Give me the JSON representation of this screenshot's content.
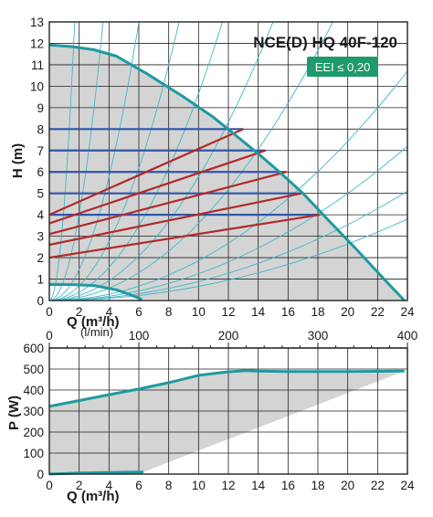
{
  "title": "NCE(D) HQ 40F-120",
  "badge": {
    "text": "EEI ≤ 0,20",
    "color": "#1f9a6b"
  },
  "colors": {
    "curve": "#1f9aa0",
    "system": "#3fb7c7",
    "fill": "#d4d4d4",
    "grid": "#222222",
    "const_pressure": "#2f56a8",
    "prop_pressure": "#b12a2a"
  },
  "chart_data": [
    {
      "type": "line",
      "name": "head",
      "ylabel": "H (m)",
      "xlabel": "Q (m³/h)",
      "xlabel_alt": "(l/min)",
      "xlim": [
        0,
        24
      ],
      "ylim": [
        0,
        13
      ],
      "x_ticks": [
        "0",
        "2",
        "4",
        "6",
        "8",
        "10",
        "12",
        "14",
        "16",
        "18",
        "20",
        "22",
        "24"
      ],
      "y_ticks": [
        "0",
        "1",
        "2",
        "3",
        "4",
        "5",
        "6",
        "7",
        "8",
        "9",
        "10",
        "11",
        "12",
        "13"
      ],
      "grid": true,
      "max_curve": {
        "x": [
          0,
          1.5,
          3,
          4.5,
          6.5,
          9,
          11,
          12.5,
          14,
          15.5,
          17,
          18.7,
          20.5,
          22.5,
          23.8
        ],
        "y": [
          11.92,
          11.85,
          11.7,
          11.4,
          10.6,
          9.5,
          8.55,
          7.7,
          6.85,
          5.95,
          5.0,
          3.75,
          2.45,
          0.95,
          0
        ]
      },
      "min_curve": {
        "x": [
          0,
          1.5,
          3,
          4.5,
          5.5,
          6.2
        ],
        "y": [
          0.75,
          0.74,
          0.7,
          0.5,
          0.25,
          0.05
        ]
      },
      "constant_pressure": [
        {
          "y": 8,
          "x_end": 13
        },
        {
          "y": 7,
          "x_end": 14.5
        },
        {
          "y": 6,
          "x_end": 15.9
        },
        {
          "y": 5,
          "x_end": 16.9
        },
        {
          "y": 4,
          "x_end": 18.1
        }
      ],
      "proportional_pressure": [
        {
          "x": [
            0,
            13
          ],
          "y": [
            4.0,
            8.0
          ]
        },
        {
          "x": [
            0,
            14.5
          ],
          "y": [
            3.6,
            7.0
          ]
        },
        {
          "x": [
            0,
            15.9
          ],
          "y": [
            3.1,
            6.0
          ]
        },
        {
          "x": [
            0,
            16.9
          ],
          "y": [
            2.6,
            5.0
          ]
        },
        {
          "x": [
            0,
            18.1
          ],
          "y": [
            2.0,
            4.0
          ]
        }
      ],
      "system_curves": [
        {
          "x": [
            0,
            1.7
          ],
          "y": [
            0,
            13
          ]
        },
        {
          "x": [
            0,
            3.6
          ],
          "y": [
            0,
            13
          ]
        },
        {
          "x": [
            0,
            6.0
          ],
          "y": [
            0,
            13
          ]
        },
        {
          "x": [
            0,
            8.7
          ],
          "y": [
            0,
            13
          ]
        },
        {
          "x": [
            0,
            11.6
          ],
          "y": [
            0,
            13
          ]
        },
        {
          "x": [
            0,
            15.0
          ],
          "y": [
            0,
            13
          ]
        },
        {
          "x": [
            0,
            19.0
          ],
          "y": [
            0,
            13
          ]
        },
        {
          "x": [
            0,
            24
          ],
          "y": [
            0,
            10.7
          ]
        },
        {
          "x": [
            0,
            24
          ],
          "y": [
            0,
            7.2
          ]
        },
        {
          "x": [
            0,
            24
          ],
          "y": [
            0,
            5.1
          ]
        },
        {
          "x": [
            0,
            24
          ],
          "y": [
            0,
            3.8
          ]
        }
      ],
      "lpm_axis": {
        "ticks": [
          "0",
          "100",
          "200",
          "300",
          "400"
        ],
        "values": [
          0,
          100,
          200,
          300,
          400
        ],
        "x_per_unit": 0.06
      }
    },
    {
      "type": "line",
      "name": "power",
      "ylabel": "P (W)",
      "xlabel": "Q (m³/h)",
      "xlim": [
        0,
        24
      ],
      "ylim": [
        0,
        600
      ],
      "x_ticks": [
        "0",
        "2",
        "4",
        "6",
        "8",
        "10",
        "12",
        "14",
        "16",
        "18",
        "20",
        "22",
        "24"
      ],
      "y_ticks": [
        "0",
        "100",
        "200",
        "300",
        "400",
        "500",
        "600"
      ],
      "grid": true,
      "max_curve": {
        "x": [
          0,
          2,
          4,
          6,
          8,
          10,
          12,
          13.2,
          14,
          16,
          18,
          20,
          22,
          23.8
        ],
        "y": [
          322,
          350,
          378,
          405,
          435,
          470,
          487,
          492,
          490,
          488,
          488,
          488,
          489,
          490
        ]
      },
      "min_curve": {
        "x": [
          0,
          2,
          4,
          6.3
        ],
        "y": [
          0,
          5,
          8,
          10
        ]
      }
    }
  ]
}
